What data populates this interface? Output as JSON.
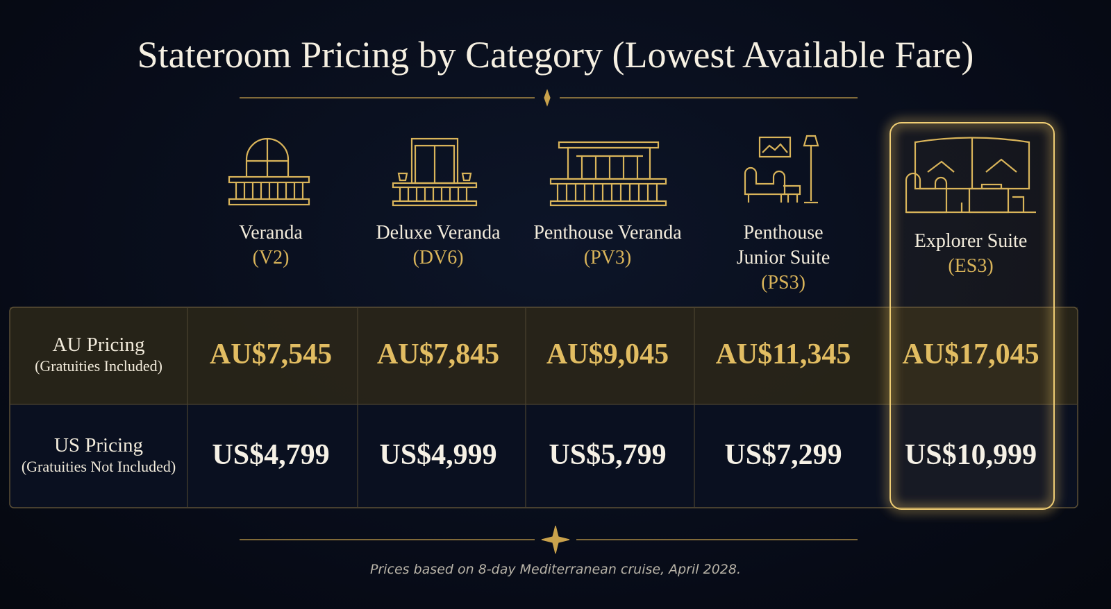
{
  "title": "Stateroom Pricing by Category (Lowest Available Fare)",
  "columns": [
    {
      "name_lines": [
        "Veranda"
      ],
      "code": "(V2)"
    },
    {
      "name_lines": [
        "Deluxe Veranda"
      ],
      "code": "(DV6)"
    },
    {
      "name_lines": [
        "Penthouse Veranda"
      ],
      "code": "(PV3)"
    },
    {
      "name_lines": [
        "Penthouse",
        "Junior Suite"
      ],
      "code": "(PS3)"
    },
    {
      "name_lines": [
        "Explorer Suite"
      ],
      "code": "(ES3)"
    }
  ],
  "rows": [
    {
      "label": "AU Pricing",
      "note": "(Gratuities Included)",
      "prices": [
        "AU$7,545",
        "AU$7,845",
        "AU$9,045",
        "AU$11,345",
        "AU$17,045"
      ]
    },
    {
      "label": "US Pricing",
      "note": "(Gratuities Not Included)",
      "prices": [
        "US$4,799",
        "US$4,999",
        "US$5,799",
        "US$7,299",
        "US$10,999"
      ]
    }
  ],
  "footnote": "Prices based on 8-day Mediterranean cruise, April 2028."
}
